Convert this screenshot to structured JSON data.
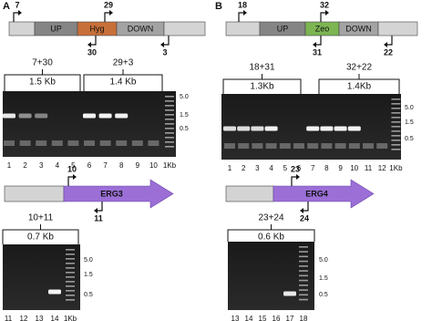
{
  "panels": [
    {
      "label": "A",
      "construct": {
        "segments": [
          "UP",
          "Hyg",
          "DOWN"
        ],
        "primers": [
          "7",
          "29",
          "30",
          "3"
        ]
      },
      "gel1": {
        "groups": [
          {
            "primers": "7+30",
            "size": "1.5 Kb"
          },
          {
            "primers": "29+3",
            "size": "1.4 Kb"
          }
        ],
        "markers": [
          "5.0",
          "1.5",
          "0.5"
        ],
        "lanes": [
          "1",
          "2",
          "3",
          "4",
          "5",
          "6",
          "7",
          "8",
          "9",
          "10",
          "1Kb"
        ]
      },
      "gene": {
        "name": "ERG3",
        "primers": [
          "10",
          "11"
        ]
      },
      "gel2": {
        "groups": [
          {
            "primers": "10+11",
            "size": "0.7 Kb"
          }
        ],
        "markers": [
          "5.0",
          "1.5",
          "0.5"
        ],
        "lanes": [
          "11",
          "12",
          "13",
          "14",
          "1Kb"
        ]
      }
    },
    {
      "label": "B",
      "construct": {
        "segments": [
          "UP",
          "Zeo",
          "DOWN"
        ],
        "primers": [
          "18",
          "32",
          "31",
          "22"
        ]
      },
      "gel1": {
        "groups": [
          {
            "primers": "18+31",
            "size": "1.3Kb"
          },
          {
            "primers": "32+22",
            "size": "1.4Kb"
          }
        ],
        "markers": [
          "5.0",
          "1.5",
          "0.5"
        ],
        "lanes": [
          "1",
          "2",
          "3",
          "4",
          "5",
          "6",
          "7",
          "8",
          "9",
          "10",
          "11",
          "12",
          "1Kb"
        ]
      },
      "gene": {
        "name": "ERG4",
        "primers": [
          "23",
          "24"
        ]
      },
      "gel2": {
        "groups": [
          {
            "primers": "23+24",
            "size": "0.6 Kb"
          }
        ],
        "markers": [
          "5.0",
          "1.5",
          "0.5"
        ],
        "lanes": [
          "13",
          "14",
          "15",
          "16",
          "17",
          "18"
        ]
      }
    }
  ]
}
